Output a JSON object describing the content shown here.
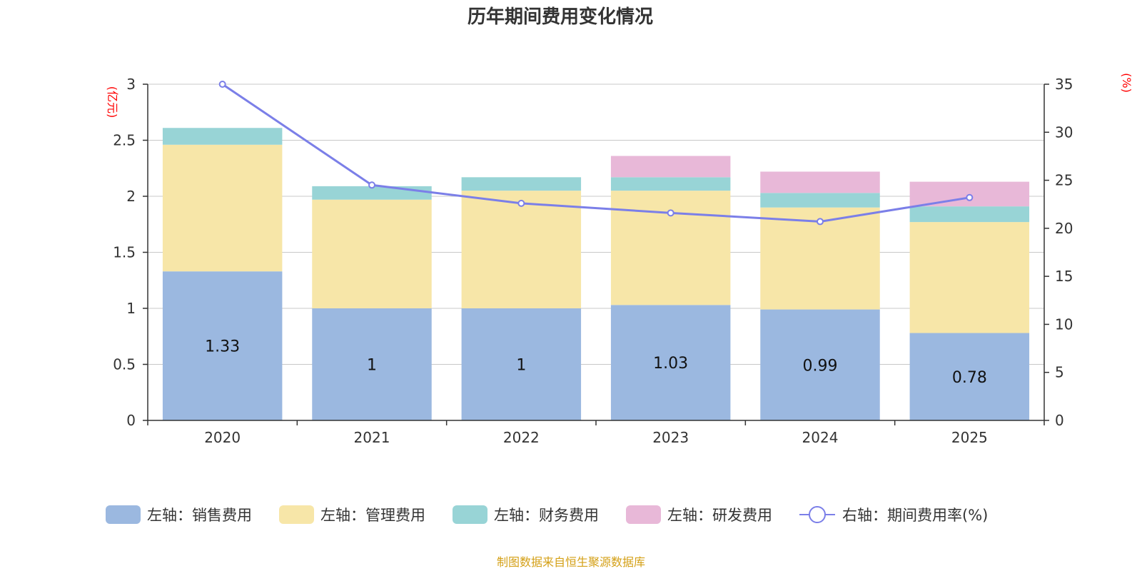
{
  "chart_data": {
    "type": "bar",
    "stacked": true,
    "title": "历年期间费用变化情况",
    "categories": [
      "2020",
      "2021",
      "2022",
      "2023",
      "2024",
      "2025"
    ],
    "left_axis": {
      "unit": "(亿元)",
      "ylim": [
        0,
        3
      ],
      "ticks": [
        "0",
        "0.5",
        "1",
        "1.5",
        "2",
        "2.5",
        "3"
      ]
    },
    "right_axis": {
      "unit": "(%)",
      "ylim": [
        0,
        35
      ],
      "ticks": [
        "0",
        "5",
        "10",
        "15",
        "20",
        "25",
        "30",
        "35"
      ]
    },
    "series": [
      {
        "name": "左轴：销售费用",
        "axis": "left",
        "color": "#9bb8e0",
        "values": [
          1.33,
          1.0,
          1.0,
          1.03,
          0.99,
          0.78
        ],
        "labels": [
          "1.33",
          "1",
          "1",
          "1.03",
          "0.99",
          "0.78"
        ]
      },
      {
        "name": "左轴：管理费用",
        "axis": "left",
        "color": "#f7e6a8",
        "values": [
          1.13,
          0.97,
          1.05,
          1.02,
          0.91,
          0.99
        ]
      },
      {
        "name": "左轴：财务费用",
        "axis": "left",
        "color": "#98d4d6",
        "values": [
          0.15,
          0.12,
          0.12,
          0.12,
          0.13,
          0.14
        ]
      },
      {
        "name": "左轴：研发费用",
        "axis": "left",
        "color": "#e8b8d8",
        "values": [
          0.0,
          0.0,
          0.0,
          0.19,
          0.19,
          0.22
        ]
      },
      {
        "name": "右轴：期间费用率(%)",
        "axis": "right",
        "type": "line",
        "color": "#7b7fe8",
        "values": [
          35.0,
          24.5,
          22.6,
          21.6,
          20.7,
          23.2
        ]
      }
    ],
    "grid": true,
    "legend_position": "bottom"
  },
  "source": {
    "text": "制图数据来自恒生聚源数据库",
    "color": "#d4a017"
  },
  "colors": {
    "axis_unit": "#ff0000",
    "grid": "#c8c8c8",
    "axis": "#333333"
  }
}
